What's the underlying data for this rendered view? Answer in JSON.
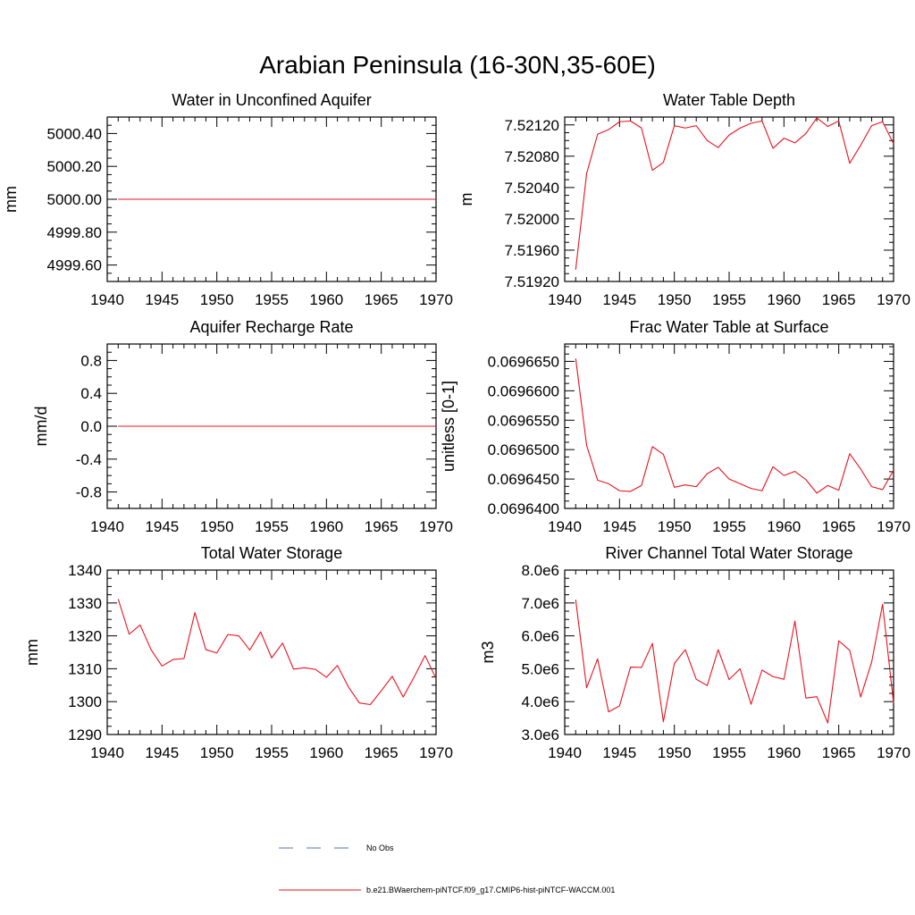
{
  "title": "Arabian Peninsula (16-30N,35-60E)",
  "legend": [
    {
      "label": "No Obs",
      "color": "#5a6fb0",
      "style": "dashed"
    },
    {
      "label": "b.e21.BWaerchem-piNTCF.f09_g17.CMIP6-hist-piNTCF-WACCM.001",
      "color": "#e8121f",
      "style": "solid"
    }
  ],
  "chart_data": [
    {
      "type": "line",
      "title": "Water in Unconfined Aquifer",
      "ylabel": "mm",
      "xlim": [
        1940,
        1970
      ],
      "ylim": [
        4999.5,
        5000.5
      ],
      "xticks": [
        1940,
        1945,
        1950,
        1955,
        1960,
        1965,
        1970
      ],
      "xtick_labels": [
        "1940",
        "1945",
        "1950",
        "1955",
        "1960",
        "1965",
        "1970"
      ],
      "yticks": [
        4999.6,
        4999.8,
        5000.0,
        5000.2,
        5000.4
      ],
      "ytick_labels": [
        "4999.60",
        "4999.80",
        "5000.00",
        "5000.20",
        "5000.40"
      ],
      "x": [
        1941,
        1970
      ],
      "series": [
        {
          "values": [
            5000.0,
            5000.0
          ],
          "color": "#e8121f"
        }
      ]
    },
    {
      "type": "line",
      "title": "Water Table Depth",
      "ylabel": "m",
      "xlim": [
        1940,
        1970
      ],
      "ylim": [
        7.5192,
        7.5213
      ],
      "xticks": [
        1940,
        1945,
        1950,
        1955,
        1960,
        1965,
        1970
      ],
      "xtick_labels": [
        "1940",
        "1945",
        "1950",
        "1955",
        "1960",
        "1965",
        "1970"
      ],
      "yticks": [
        7.5192,
        7.5196,
        7.52,
        7.5204,
        7.5208,
        7.5212
      ],
      "ytick_labels": [
        "7.51920",
        "7.51960",
        "7.52000",
        "7.52040",
        "7.52080",
        "7.52120"
      ],
      "x": [
        1941,
        1942,
        1943,
        1944,
        1945,
        1946,
        1947,
        1948,
        1949,
        1950,
        1951,
        1952,
        1953,
        1954,
        1955,
        1956,
        1957,
        1958,
        1959,
        1960,
        1961,
        1962,
        1963,
        1964,
        1965,
        1966,
        1967,
        1968,
        1969,
        1970
      ],
      "series": [
        {
          "values": [
            7.51935,
            7.52058,
            7.52108,
            7.52114,
            7.52124,
            7.52125,
            7.52116,
            7.52062,
            7.52072,
            7.52119,
            7.52116,
            7.52119,
            7.521,
            7.52091,
            7.52107,
            7.52116,
            7.52122,
            7.52125,
            7.5209,
            7.52103,
            7.52097,
            7.52109,
            7.52129,
            7.52118,
            7.52125,
            7.52071,
            7.52094,
            7.52119,
            7.52124,
            7.52096
          ],
          "color": "#e8121f"
        }
      ]
    },
    {
      "type": "line",
      "title": "Aquifer Recharge Rate",
      "ylabel": "mm/d",
      "xlim": [
        1940,
        1970
      ],
      "ylim": [
        -1.0,
        1.0
      ],
      "xticks": [
        1940,
        1945,
        1950,
        1955,
        1960,
        1965,
        1970
      ],
      "xtick_labels": [
        "1940",
        "1945",
        "1950",
        "1955",
        "1960",
        "1965",
        "1970"
      ],
      "yticks": [
        -0.8,
        -0.4,
        0.0,
        0.4,
        0.8
      ],
      "ytick_labels": [
        "-0.8",
        "-0.4",
        "0.0",
        "0.4",
        "0.8"
      ],
      "x": [
        1941,
        1970
      ],
      "series": [
        {
          "values": [
            0.0,
            0.0
          ],
          "color": "#e8121f"
        }
      ]
    },
    {
      "type": "line",
      "title": "Frac Water Table at Surface",
      "ylabel": "unitless [0-1]",
      "xlim": [
        1940,
        1970
      ],
      "ylim": [
        0.06964,
        0.06966795
      ],
      "xticks": [
        1940,
        1945,
        1950,
        1955,
        1960,
        1965,
        1970
      ],
      "xtick_labels": [
        "1940",
        "1945",
        "1950",
        "1955",
        "1960",
        "1965",
        "1970"
      ],
      "yticks": [
        0.06964,
        0.069645,
        0.06965,
        0.069655,
        0.06966,
        0.069665
      ],
      "ytick_labels": [
        "0.0696400",
        "0.0696450",
        "0.0696500",
        "0.0696550",
        "0.0696600",
        "0.0696650"
      ],
      "x": [
        1941,
        1942,
        1943,
        1944,
        1945,
        1946,
        1947,
        1948,
        1949,
        1950,
        1951,
        1952,
        1953,
        1954,
        1955,
        1956,
        1957,
        1958,
        1959,
        1960,
        1961,
        1962,
        1963,
        1964,
        1965,
        1966,
        1967,
        1968,
        1969,
        1970
      ],
      "series": [
        {
          "values": [
            0.0696655,
            0.0696507,
            0.0696448,
            0.0696442,
            0.069643,
            0.0696429,
            0.0696439,
            0.0696505,
            0.0696492,
            0.0696436,
            0.069644,
            0.0696437,
            0.0696459,
            0.069647,
            0.069645,
            0.0696442,
            0.0696434,
            0.069643,
            0.0696471,
            0.0696456,
            0.0696463,
            0.0696449,
            0.0696426,
            0.0696439,
            0.0696431,
            0.0696493,
            0.0696467,
            0.0696437,
            0.0696432,
            0.0696465
          ],
          "color": "#e8121f"
        }
      ]
    },
    {
      "type": "line",
      "title": "Total Water Storage",
      "ylabel": "mm",
      "xlim": [
        1940,
        1970
      ],
      "ylim": [
        1290,
        1340
      ],
      "xticks": [
        1940,
        1945,
        1950,
        1955,
        1960,
        1965,
        1970
      ],
      "xtick_labels": [
        "1940",
        "1945",
        "1950",
        "1955",
        "1960",
        "1965",
        "1970"
      ],
      "yticks": [
        1290,
        1300,
        1310,
        1320,
        1330,
        1340
      ],
      "ytick_labels": [
        "1290",
        "1300",
        "1310",
        "1320",
        "1330",
        "1340"
      ],
      "x": [
        1941,
        1942,
        1943,
        1944,
        1945,
        1946,
        1947,
        1948,
        1949,
        1950,
        1951,
        1952,
        1953,
        1954,
        1955,
        1956,
        1957,
        1958,
        1959,
        1960,
        1961,
        1962,
        1963,
        1964,
        1965,
        1966,
        1967,
        1968,
        1969,
        1970
      ],
      "series": [
        {
          "values": [
            1331.2,
            1320.5,
            1323.3,
            1315.8,
            1310.8,
            1312.8,
            1313.1,
            1327.1,
            1315.8,
            1314.8,
            1320.4,
            1320.0,
            1315.7,
            1321.2,
            1313.3,
            1317.8,
            1309.9,
            1310.3,
            1309.8,
            1307.4,
            1311.0,
            1304.5,
            1299.6,
            1299.1,
            1303.3,
            1307.7,
            1301.4,
            1307.5,
            1314.0,
            1307.0
          ],
          "color": "#e8121f"
        }
      ]
    },
    {
      "type": "line",
      "title": "River Channel Total Water Storage",
      "ylabel": "m3",
      "xlim": [
        1940,
        1970
      ],
      "ylim": [
        3000000,
        8000000
      ],
      "xticks": [
        1940,
        1945,
        1950,
        1955,
        1960,
        1965,
        1970
      ],
      "xtick_labels": [
        "1940",
        "1945",
        "1950",
        "1955",
        "1960",
        "1965",
        "1970"
      ],
      "yticks": [
        3000000,
        4000000,
        5000000,
        6000000,
        7000000,
        8000000
      ],
      "ytick_labels": [
        "3.0e6",
        "4.0e6",
        "5.0e6",
        "6.0e6",
        "7.0e6",
        "8.0e6"
      ],
      "x": [
        1941,
        1942,
        1943,
        1944,
        1945,
        1946,
        1947,
        1948,
        1949,
        1950,
        1951,
        1952,
        1953,
        1954,
        1955,
        1956,
        1957,
        1958,
        1959,
        1960,
        1961,
        1962,
        1963,
        1964,
        1965,
        1966,
        1967,
        1968,
        1969,
        1970
      ],
      "series": [
        {
          "values": [
            7100000,
            4420000,
            5300000,
            3690000,
            3870000,
            5050000,
            5040000,
            5770000,
            3390000,
            5160000,
            5580000,
            4680000,
            4490000,
            5580000,
            4670000,
            5000000,
            3920000,
            4960000,
            4760000,
            4680000,
            6450000,
            4110000,
            4150000,
            3350000,
            5850000,
            5560000,
            4140000,
            5200000,
            6960000,
            3950000
          ],
          "color": "#e8121f"
        }
      ]
    }
  ]
}
